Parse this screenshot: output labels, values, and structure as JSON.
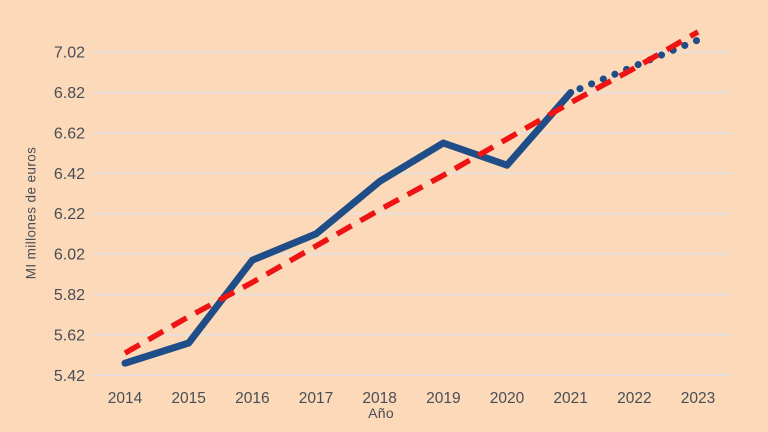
{
  "colors": {
    "background": "#fbd9b9",
    "gridline": "#e3e1e3",
    "line_navy": "#1f4d87",
    "line_red": "#ee1414",
    "text": "#4a4d56"
  },
  "chart_data": {
    "type": "line",
    "title": "",
    "xlabel": "Año",
    "ylabel": "MI millones de euros",
    "x": [
      2014,
      2015,
      2016,
      2017,
      2018,
      2019,
      2020,
      2021,
      2022,
      2023
    ],
    "x_tick_labels": [
      "2014",
      "2015",
      "2016",
      "2017",
      "2018",
      "2019",
      "2020",
      "2021",
      "2022",
      "2023"
    ],
    "y_ticks": [
      5.42,
      5.62,
      5.82,
      6.02,
      6.22,
      6.42,
      6.62,
      6.82,
      7.02
    ],
    "y_tick_labels": [
      "5.42",
      "5.62",
      "5.82",
      "6.02",
      "6.22",
      "6.42",
      "6.62",
      "6.82",
      "7.02"
    ],
    "ylim": [
      5.42,
      7.22
    ],
    "grid": true,
    "legend_position": "none",
    "series": [
      {
        "name": "solid-actual-line",
        "style": "solid",
        "color": "#1f4d87",
        "x": [
          2014,
          2015,
          2016,
          2017,
          2018,
          2019,
          2020,
          2021
        ],
        "values": [
          5.48,
          5.58,
          5.99,
          6.12,
          6.38,
          6.57,
          6.46,
          6.82
        ]
      },
      {
        "name": "dotted-projection-line",
        "style": "dotted",
        "color": "#1f4d87",
        "x": [
          2021,
          2022,
          2023
        ],
        "values": [
          6.82,
          6.95,
          7.08
        ]
      },
      {
        "name": "dashed-trend-line",
        "style": "dashed",
        "color": "#ee1414",
        "x": [
          2014,
          2015,
          2016,
          2017,
          2018,
          2019,
          2020,
          2021,
          2022,
          2023
        ],
        "values": [
          5.53,
          5.71,
          5.88,
          6.06,
          6.24,
          6.41,
          6.59,
          6.77,
          6.94,
          7.12
        ]
      }
    ]
  }
}
